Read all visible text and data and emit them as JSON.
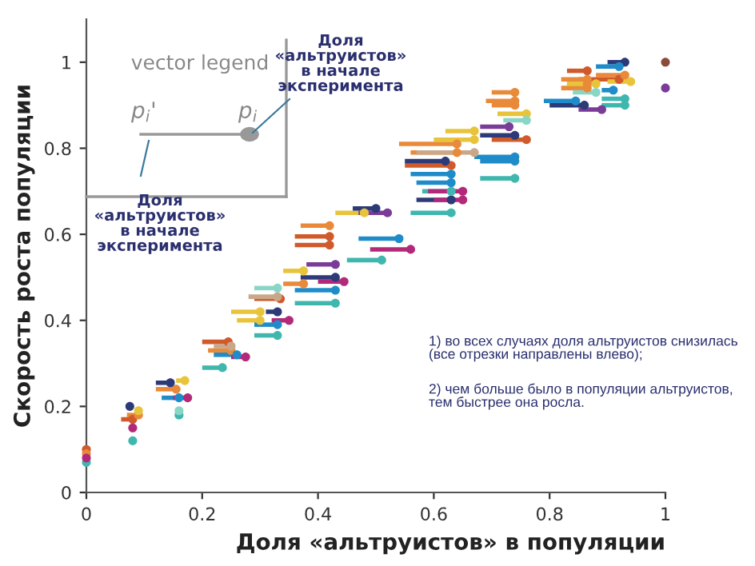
{
  "chart_data": {
    "type": "scatter",
    "xlabel": "Доля «альтруистов» в популяции",
    "ylabel": "Скорость роста популяции",
    "xlim": [
      0,
      1
    ],
    "ylim": [
      0,
      1.1
    ],
    "xticks": [
      0,
      0.2,
      0.4,
      0.6,
      0.8,
      1
    ],
    "yticks": [
      0,
      0.2,
      0.4,
      0.6,
      0.8,
      1
    ],
    "grid": false,
    "marker": "circle",
    "annotations": [
      "vector legend",
      "p$_{i}$'",
      "p$_{i}$",
      "Доля\n«альтруистов»\nв начале\nэксперимента",
      "Доля\n«альтруистов»\nв начале\nэксперимента",
      "1) во всех случаях доля альтруистов снизилась\n(все отрезки направлены влево);",
      "2) чем больше было в популяции альтруистов,\nтем быстрее она росла."
    ],
    "series": [
      {
        "color": "#d05a2c",
        "x": [
          0,
          0.08,
          0.245,
          0.335,
          0.42,
          0.42,
          0.63,
          0.76,
          0.865,
          0.92
        ],
        "values": [
          0.1,
          0.17,
          0.35,
          0.45,
          0.575,
          0.595,
          0.76,
          0.82,
          0.98,
          0.96
        ],
        "xerrors": [
          null,
          [
            0.06,
            0.08
          ],
          [
            0.2,
            0.245
          ],
          [
            0.29,
            0.335
          ],
          [
            0.36,
            0.42
          ],
          [
            0.36,
            0.42
          ],
          [
            0.55,
            0.63
          ],
          [
            0.7,
            0.76
          ],
          [
            0.83,
            0.865
          ],
          [
            0.85,
            0.92
          ]
        ]
      },
      {
        "color": "#e98a3a",
        "x": [
          0,
          0.09,
          0.155,
          0.25,
          0.375,
          0.42,
          0.64,
          0.64,
          0.74,
          0.74,
          0.74,
          0.865,
          0.865,
          0.865,
          0.93
        ],
        "values": [
          0.09,
          0.18,
          0.24,
          0.33,
          0.485,
          0.62,
          0.81,
          0.79,
          0.93,
          0.91,
          0.9,
          0.96,
          0.95,
          0.94,
          0.97
        ],
        "xerrors": [
          null,
          [
            0.07,
            0.09
          ],
          [
            0.12,
            0.155
          ],
          [
            0.21,
            0.25
          ],
          [
            0.34,
            0.375
          ],
          [
            0.37,
            0.42
          ],
          [
            0.54,
            0.64
          ],
          [
            0.56,
            0.64
          ],
          [
            0.7,
            0.74
          ],
          [
            0.69,
            0.74
          ],
          [
            0.7,
            0.74
          ],
          [
            0.82,
            0.865
          ],
          [
            0.83,
            0.865
          ],
          [
            0.82,
            0.865
          ],
          [
            0.88,
            0.93
          ]
        ]
      },
      {
        "color": "#e8c43a",
        "x": [
          0.09,
          0.17,
          0.3,
          0.3,
          0.375,
          0.48,
          0.67,
          0.67,
          0.76,
          0.88,
          0.94
        ],
        "values": [
          0.19,
          0.26,
          0.42,
          0.4,
          0.515,
          0.65,
          0.84,
          0.82,
          0.88,
          0.95,
          0.955
        ],
        "xerrors": [
          null,
          [
            0.155,
            0.17
          ],
          [
            0.25,
            0.3
          ],
          [
            0.26,
            0.3
          ],
          [
            0.34,
            0.375
          ],
          [
            0.43,
            0.48
          ],
          [
            0.62,
            0.67
          ],
          [
            0.6,
            0.67
          ],
          [
            0.71,
            0.76
          ],
          [
            0.83,
            0.88
          ],
          [
            0.9,
            0.94
          ]
        ]
      },
      {
        "color": "#c9a88a",
        "x": [
          0.25,
          0.33,
          0.67
        ],
        "values": [
          0.34,
          0.455,
          0.79
        ],
        "xerrors": [
          [
            0.22,
            0.25
          ],
          [
            0.28,
            0.33
          ],
          [
            0.57,
            0.67
          ]
        ]
      },
      {
        "color": "#2c3a78",
        "x": [
          0.075,
          0.145,
          0.33,
          0.43,
          0.5,
          0.62,
          0.63,
          0.74,
          0.86,
          0.93
        ],
        "values": [
          0.2,
          0.255,
          0.42,
          0.5,
          0.66,
          0.77,
          0.68,
          0.83,
          0.9,
          1.0
        ],
        "xerrors": [
          [
            0.07,
            0.075
          ],
          [
            0.12,
            0.145
          ],
          [
            0.31,
            0.33
          ],
          [
            0.37,
            0.43
          ],
          [
            0.46,
            0.5
          ],
          [
            0.55,
            0.62
          ],
          [
            0.57,
            0.63
          ],
          [
            0.68,
            0.74
          ],
          [
            0.8,
            0.86
          ],
          [
            0.9,
            0.93
          ]
        ]
      },
      {
        "color": "#1f8cc9",
        "x": [
          0.16,
          0.26,
          0.33,
          0.43,
          0.54,
          0.63,
          0.63,
          0.74,
          0.74,
          0.845,
          0.92,
          0.91
        ],
        "values": [
          0.22,
          0.32,
          0.39,
          0.47,
          0.59,
          0.74,
          0.72,
          0.78,
          0.77,
          0.91,
          0.99,
          0.935
        ],
        "xerrors": [
          [
            0.13,
            0.16
          ],
          [
            0.22,
            0.26
          ],
          [
            0.29,
            0.33
          ],
          [
            0.36,
            0.43
          ],
          [
            0.47,
            0.54
          ],
          [
            0.56,
            0.63
          ],
          [
            0.57,
            0.63
          ],
          [
            0.67,
            0.74
          ],
          [
            0.68,
            0.74
          ],
          [
            0.79,
            0.845
          ],
          [
            0.88,
            0.92
          ],
          [
            0.89,
            0.91
          ]
        ]
      },
      {
        "color": "#40b7ae",
        "x": [
          0,
          0.08,
          0.16,
          0.235,
          0.33,
          0.43,
          0.51,
          0.63,
          0.63,
          0.74,
          0.93,
          0.93
        ],
        "values": [
          0.07,
          0.12,
          0.18,
          0.29,
          0.365,
          0.44,
          0.54,
          0.7,
          0.65,
          0.73,
          0.915,
          0.9
        ],
        "xerrors": [
          null,
          null,
          null,
          [
            0.2,
            0.235
          ],
          [
            0.29,
            0.33
          ],
          [
            0.36,
            0.43
          ],
          [
            0.45,
            0.51
          ],
          [
            0.58,
            0.63
          ],
          [
            0.56,
            0.63
          ],
          [
            0.68,
            0.74
          ],
          [
            0.89,
            0.93
          ],
          [
            0.89,
            0.93
          ]
        ]
      },
      {
        "color": "#8ad6c6",
        "x": [
          0.16,
          0.33,
          0.76,
          0.88
        ],
        "values": [
          0.19,
          0.475,
          0.865,
          0.93
        ],
        "xerrors": [
          null,
          [
            0.29,
            0.33
          ],
          [
            0.72,
            0.76
          ],
          [
            0.84,
            0.88
          ]
        ]
      },
      {
        "color": "#b3297a",
        "x": [
          0,
          0.08,
          0.175,
          0.275,
          0.35,
          0.445,
          0.56,
          0.65,
          0.65
        ],
        "values": [
          0.08,
          0.15,
          0.22,
          0.315,
          0.4,
          0.49,
          0.565,
          0.7,
          0.68
        ],
        "xerrors": [
          null,
          null,
          [
            0.15,
            0.175
          ],
          [
            0.25,
            0.275
          ],
          [
            0.32,
            0.35
          ],
          [
            0.4,
            0.445
          ],
          [
            0.49,
            0.56
          ],
          [
            0.59,
            0.65
          ],
          [
            0.6,
            0.65
          ]
        ]
      },
      {
        "color": "#7a3c98",
        "x": [
          0.43,
          0.52,
          0.73,
          0.89,
          1.0
        ],
        "values": [
          0.53,
          0.65,
          0.85,
          0.89,
          0.94
        ],
        "xerrors": [
          [
            0.38,
            0.43
          ],
          [
            0.47,
            0.52
          ],
          [
            0.68,
            0.73
          ],
          [
            0.85,
            0.89
          ],
          null
        ]
      },
      {
        "color": "#8b4b3b",
        "x": [
          1.0
        ],
        "values": [
          1.0
        ],
        "xerrors": [
          null
        ]
      }
    ]
  }
}
